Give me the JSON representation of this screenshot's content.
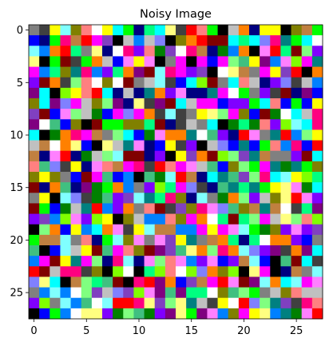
{
  "chart_data": {
    "type": "heatmap",
    "title": "Noisy Image",
    "xlabel": "",
    "ylabel": "",
    "grid": false,
    "legend": "none",
    "shape": [
      28,
      28
    ],
    "channels": "rgb",
    "value_encoding": "each cell is an RGB color (approximate; random noise)",
    "xlim": [
      -0.5,
      27.5
    ],
    "ylim": [
      27.5,
      -0.5
    ],
    "x_ticks": [
      0,
      5,
      10,
      15,
      20,
      25
    ],
    "y_ticks": [
      0,
      5,
      10,
      15,
      20,
      25
    ],
    "palette": [
      "#FF0000",
      "#00FF00",
      "#0000FF",
      "#FFFF00",
      "#FF00FF",
      "#00FFFF",
      "#000000",
      "#FFFFFF",
      "#800000",
      "#008000",
      "#000080",
      "#808000",
      "#800080",
      "#008080",
      "#808080",
      "#C0C0C0",
      "#FF8000",
      "#80FF00",
      "#0080FF",
      "#FF0080",
      "#8000FF",
      "#00FF80",
      "#FF8080",
      "#80FF80",
      "#8080FF",
      "#FFFF80",
      "#FF80FF",
      "#80FFFF",
      "#404040",
      "#C08040",
      "#40C080",
      "#8040C0"
    ],
    "pixels": [
      [
        14,
        28,
        3,
        27,
        11,
        22,
        7,
        3,
        5,
        1,
        10,
        21,
        5,
        25,
        28,
        0,
        22,
        1,
        6,
        15,
        16,
        10,
        3,
        3,
        6,
        11,
        29,
        1
      ],
      [
        2,
        10,
        1,
        19,
        29,
        0,
        4,
        31,
        6,
        15,
        18,
        15,
        24,
        6,
        11,
        16,
        0,
        8,
        8,
        5,
        21,
        5,
        24,
        19,
        13,
        1,
        5,
        7
      ],
      [
        27,
        18,
        16,
        0,
        21,
        14,
        25,
        10,
        7,
        19,
        20,
        22,
        9,
        31,
        7,
        19,
        29,
        10,
        9,
        18,
        16,
        6,
        26,
        0,
        21,
        8,
        23,
        20
      ],
      [
        25,
        6,
        1,
        8,
        28,
        1,
        16,
        15,
        2,
        26,
        3,
        26,
        6,
        14,
        4,
        6,
        4,
        2,
        4,
        23,
        30,
        3,
        12,
        18,
        26,
        17,
        4,
        13
      ],
      [
        4,
        18,
        21,
        11,
        13,
        19,
        18,
        20,
        21,
        16,
        12,
        8,
        27,
        19,
        4,
        20,
        31,
        6,
        7,
        25,
        29,
        14,
        4,
        3,
        31,
        0,
        6,
        16
      ],
      [
        20,
        8,
        16,
        28,
        23,
        22,
        7,
        11,
        7,
        8,
        14,
        15,
        27,
        28,
        2,
        5,
        17,
        8,
        14,
        5,
        22,
        15,
        10,
        20,
        24,
        28,
        15,
        18
      ],
      [
        12,
        5,
        6,
        17,
        3,
        22,
        0,
        5,
        10,
        15,
        10,
        13,
        16,
        20,
        26,
        10,
        10,
        13,
        4,
        7,
        1,
        14,
        20,
        28,
        8,
        10,
        12,
        2
      ],
      [
        11,
        5,
        12,
        24,
        4,
        15,
        11,
        23,
        12,
        10,
        25,
        28,
        12,
        8,
        5,
        15,
        4,
        4,
        2,
        20,
        20,
        1,
        5,
        22,
        2,
        1,
        2,
        3
      ],
      [
        31,
        8,
        2,
        26,
        23,
        15,
        9,
        2,
        4,
        24,
        4,
        16,
        28,
        27,
        28,
        14,
        3,
        25,
        23,
        4,
        11,
        2,
        8,
        9,
        7,
        5,
        15,
        19
      ],
      [
        12,
        7,
        30,
        2,
        11,
        6,
        8,
        1,
        1,
        11,
        11,
        21,
        8,
        10,
        28,
        15,
        14,
        5,
        6,
        9,
        21,
        9,
        22,
        20,
        17,
        27,
        5,
        19
      ],
      [
        5,
        6,
        9,
        16,
        19,
        4,
        29,
        14,
        23,
        5,
        2,
        9,
        26,
        16,
        16,
        13,
        7,
        30,
        20,
        10,
        0,
        26,
        14,
        13,
        0,
        18,
        23,
        3
      ],
      [
        15,
        29,
        7,
        16,
        25,
        2,
        6,
        25,
        15,
        13,
        26,
        10,
        2,
        3,
        28,
        20,
        6,
        15,
        24,
        2,
        13,
        2,
        1,
        22,
        18,
        19,
        2,
        0
      ],
      [
        29,
        10,
        26,
        0,
        10,
        9,
        15,
        23,
        27,
        8,
        8,
        10,
        20,
        6,
        3,
        31,
        16,
        8,
        17,
        23,
        31,
        13,
        29,
        14,
        14,
        20,
        8,
        5
      ],
      [
        22,
        30,
        24,
        28,
        3,
        10,
        26,
        22,
        29,
        4,
        19,
        28,
        0,
        22,
        4,
        26,
        15,
        30,
        2,
        11,
        23,
        1,
        4,
        13,
        9,
        13,
        1,
        11
      ],
      [
        11,
        3,
        11,
        14,
        2,
        8,
        4,
        30,
        2,
        18,
        6,
        30,
        9,
        27,
        0,
        29,
        10,
        5,
        13,
        30,
        31,
        23,
        19,
        5,
        27,
        3,
        17,
        21
      ],
      [
        8,
        10,
        16,
        30,
        10,
        12,
        9,
        1,
        16,
        18,
        14,
        20,
        17,
        21,
        4,
        24,
        28,
        10,
        30,
        13,
        21,
        13,
        1,
        3,
        25,
        26,
        9,
        5
      ],
      [
        14,
        3,
        6,
        27,
        24,
        28,
        9,
        30,
        20,
        31,
        27,
        13,
        21,
        19,
        11,
        10,
        27,
        14,
        9,
        16,
        23,
        20,
        15,
        11,
        25,
        0,
        26,
        20
      ],
      [
        8,
        1,
        2,
        9,
        15,
        13,
        0,
        18,
        20,
        16,
        14,
        22,
        8,
        28,
        31,
        11,
        19,
        26,
        24,
        30,
        11,
        29,
        13,
        29,
        7,
        28,
        21,
        12
      ],
      [
        20,
        31,
        18,
        17,
        26,
        20,
        17,
        3,
        6,
        11,
        15,
        18,
        18,
        22,
        11,
        4,
        16,
        7,
        21,
        8,
        21,
        23,
        4,
        15,
        25,
        23,
        22,
        17
      ],
      [
        6,
        23,
        16,
        2,
        3,
        18,
        5,
        16,
        26,
        28,
        3,
        27,
        29,
        29,
        18,
        18,
        4,
        3,
        4,
        26,
        27,
        1,
        9,
        11,
        20,
        26,
        20,
        31
      ],
      [
        1,
        29,
        29,
        27,
        14,
        22,
        10,
        1,
        27,
        11,
        26,
        14,
        26,
        31,
        3,
        13,
        14,
        29,
        16,
        21,
        10,
        21,
        7,
        16,
        16,
        20,
        2,
        14
      ],
      [
        30,
        6,
        2,
        27,
        15,
        3,
        8,
        30,
        4,
        22,
        11,
        8,
        12,
        31,
        30,
        25,
        16,
        23,
        19,
        16,
        27,
        24,
        20,
        12,
        28,
        16,
        12,
        5
      ],
      [
        18,
        4,
        8,
        3,
        13,
        4,
        23,
        10,
        19,
        27,
        10,
        26,
        23,
        22,
        26,
        18,
        20,
        26,
        2,
        20,
        29,
        27,
        2,
        6,
        30,
        8,
        5,
        28
      ],
      [
        0,
        8,
        15,
        19,
        19,
        28,
        11,
        6,
        17,
        7,
        6,
        21,
        17,
        22,
        7,
        17,
        24,
        16,
        11,
        17,
        6,
        25,
        4,
        6,
        10,
        29,
        14,
        27
      ],
      [
        24,
        25,
        5,
        6,
        29,
        23,
        21,
        30,
        8,
        6,
        19,
        0,
        12,
        16,
        2,
        31,
        29,
        4,
        0,
        26,
        8,
        12,
        27,
        16,
        5,
        27,
        4,
        26
      ],
      [
        14,
        18,
        27,
        18,
        7,
        23,
        31,
        15,
        24,
        31,
        17,
        26,
        12,
        30,
        12,
        21,
        21,
        7,
        11,
        30,
        23,
        1,
        14,
        15,
        11,
        22,
        15,
        15
      ],
      [
        20,
        17,
        14,
        27,
        18,
        30,
        7,
        27,
        0,
        0,
        19,
        25,
        31,
        23,
        25,
        13,
        15,
        28,
        3,
        7,
        0,
        24,
        23,
        13,
        31,
        28,
        19,
        22
      ],
      [
        6,
        2,
        1,
        18,
        7,
        25,
        25,
        20,
        9,
        23,
        30,
        9,
        20,
        12,
        25,
        1,
        12,
        26,
        18,
        11,
        4,
        3,
        25,
        18,
        13,
        9,
        26,
        0
      ]
    ]
  }
}
